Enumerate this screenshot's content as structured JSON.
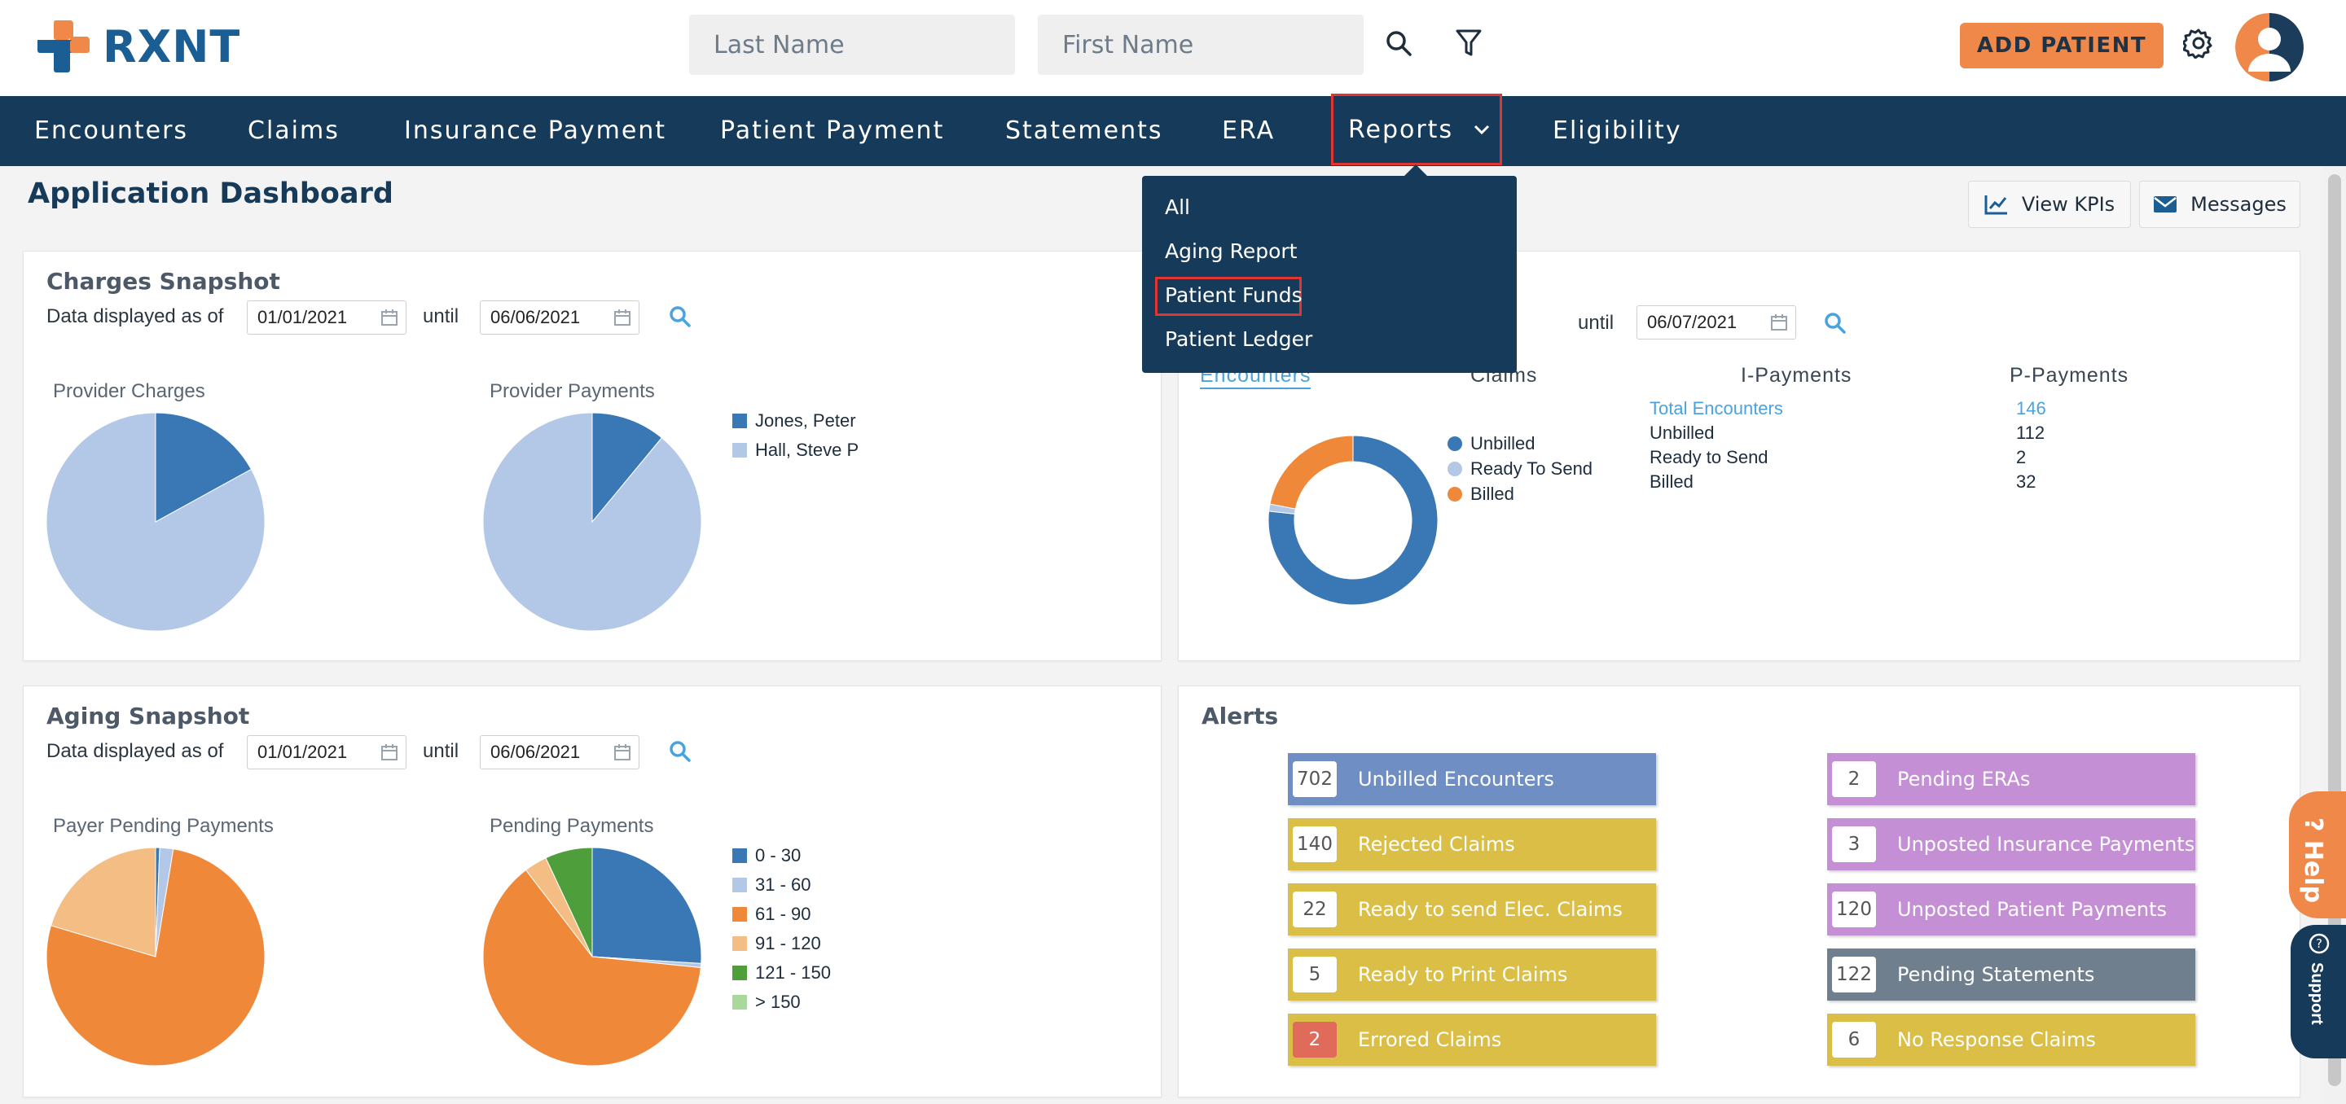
{
  "brand": {
    "name": "RXNT",
    "orange": "#f0884a",
    "navy": "#163a59",
    "blue": "#1b5e94"
  },
  "search": {
    "last_name_placeholder": "Last Name",
    "first_name_placeholder": "First Name"
  },
  "header": {
    "add_patient_label": "ADD PATIENT",
    "search_icon": "search-icon",
    "filter_icon": "filter-icon",
    "settings_icon": "gear-icon"
  },
  "nav": {
    "items": [
      {
        "label": "Encounters"
      },
      {
        "label": "Claims"
      },
      {
        "label": "Insurance Payment"
      },
      {
        "label": "Patient Payment"
      },
      {
        "label": "Statements"
      },
      {
        "label": "ERA"
      },
      {
        "label": "Reports"
      },
      {
        "label": "Eligibility"
      }
    ]
  },
  "reports_menu": {
    "items": [
      "All",
      "Aging Report",
      "Patient Funds",
      "Patient Ledger"
    ],
    "highlighted": "Patient Funds"
  },
  "page": {
    "title": "Application Dashboard",
    "view_kpis_label": "View KPIs",
    "messages_label": "Messages"
  },
  "charges": {
    "title": "Charges Snapshot",
    "displayed_as_of": "Data displayed as of",
    "until": "until",
    "from_date": "01/01/2021",
    "to_date": "06/06/2021",
    "provider_charges_label": "Provider Charges",
    "provider_payments_label": "Provider Payments",
    "legend": [
      "Jones, Peter",
      "Hall, Steve P"
    ]
  },
  "encounters_panel": {
    "until": "until",
    "to_date": "06/07/2021",
    "tabs": [
      "Encounters",
      "Claims",
      "I-Payments",
      "P-Payments"
    ],
    "legend": [
      "Unbilled",
      "Ready To Send",
      "Billed"
    ],
    "stats": [
      {
        "label": "Total Encounters",
        "value": "146"
      },
      {
        "label": "Unbilled",
        "value": "112"
      },
      {
        "label": "Ready to Send",
        "value": "2"
      },
      {
        "label": "Billed",
        "value": "32"
      }
    ]
  },
  "aging": {
    "title": "Aging Snapshot",
    "displayed_as_of": "Data displayed as of",
    "until": "until",
    "from_date": "01/01/2021",
    "to_date": "06/06/2021",
    "payer_pending_label": "Payer Pending Payments",
    "pending_payments_label": "Pending Payments",
    "legend": [
      "0 - 30",
      "31 - 60",
      "61 - 90",
      "91 - 120",
      "121 - 150",
      "> 150"
    ]
  },
  "alerts": {
    "title": "Alerts",
    "left": [
      {
        "count": "702",
        "label": "Unbilled Encounters",
        "color": "#6f8fc4"
      },
      {
        "count": "140",
        "label": "Rejected Claims",
        "color": "#dbbe45"
      },
      {
        "count": "22",
        "label": "Ready to send Elec. Claims",
        "color": "#dbbe45"
      },
      {
        "count": "5",
        "label": "Ready to Print Claims",
        "color": "#dbbe45"
      },
      {
        "count": "2",
        "label": "Errored Claims",
        "color": "#dbbe45"
      }
    ],
    "right": [
      {
        "count": "2",
        "label": "Pending ERAs",
        "color": "#c58fd6"
      },
      {
        "count": "3",
        "label": "Unposted Insurance Payments",
        "color": "#c58fd6"
      },
      {
        "count": "120",
        "label": "Unposted Patient Payments",
        "color": "#c58fd6"
      },
      {
        "count": "122",
        "label": "Pending Statements",
        "color": "#6f7f8d"
      },
      {
        "count": "6",
        "label": "No Response Claims",
        "color": "#dbbe45"
      }
    ]
  },
  "help": {
    "label": "Help",
    "support_label": "Support"
  },
  "chart_data": [
    {
      "type": "pie",
      "title": "Provider Charges",
      "series": [
        {
          "name": "Jones, Peter",
          "value": 17
        },
        {
          "name": "Hall, Steve P",
          "value": 83
        }
      ]
    },
    {
      "type": "pie",
      "title": "Provider Payments",
      "series": [
        {
          "name": "Jones, Peter",
          "value": 11
        },
        {
          "name": "Hall, Steve P",
          "value": 89
        }
      ]
    },
    {
      "type": "pie",
      "title": "",
      "series": [
        {
          "name": "Unbilled",
          "value": 112
        },
        {
          "name": "Ready To Send",
          "value": 2
        },
        {
          "name": "Billed",
          "value": 32
        }
      ]
    },
    {
      "type": "pie",
      "title": "Payer Pending Payments",
      "series": [
        {
          "name": "0 - 30",
          "value": 0.6
        },
        {
          "name": "31 - 60",
          "value": 2
        },
        {
          "name": "61 - 90",
          "value": 77
        },
        {
          "name": "91 - 120",
          "value": 20.4
        },
        {
          "name": "121 - 150",
          "value": 0
        },
        {
          "name": "> 150",
          "value": 0
        }
      ]
    },
    {
      "type": "pie",
      "title": "Pending Payments",
      "series": [
        {
          "name": "0 - 30",
          "value": 26
        },
        {
          "name": "31 - 60",
          "value": 0.6
        },
        {
          "name": "61 - 90",
          "value": 63
        },
        {
          "name": "91 - 120",
          "value": 3.4
        },
        {
          "name": "121 - 150",
          "value": 7
        },
        {
          "name": "> 150",
          "value": 0
        }
      ]
    }
  ]
}
